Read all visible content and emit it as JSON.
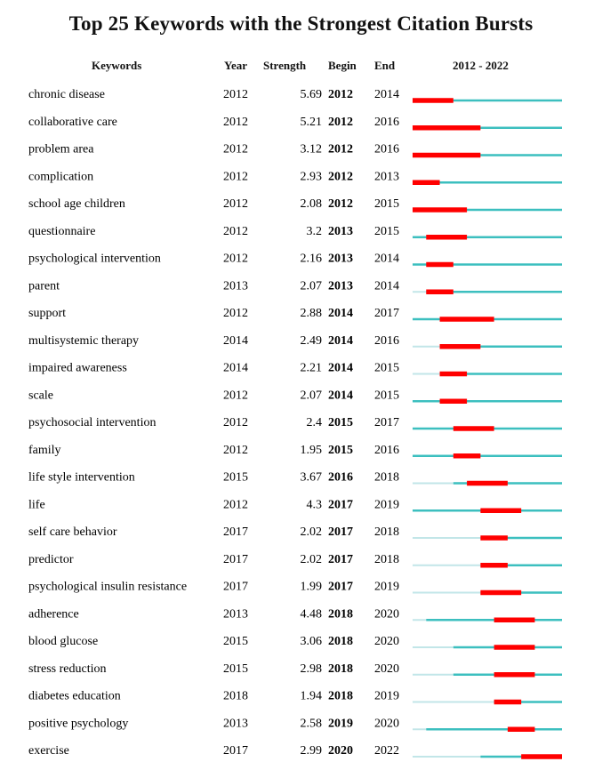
{
  "title": "Top 25 Keywords with the Strongest Citation Bursts",
  "headers": {
    "keywords": "Keywords",
    "year": "Year",
    "strength": "Strength",
    "begin": "Begin",
    "end": "End",
    "range": "2012 - 2022"
  },
  "colors": {
    "burst": "#ff0000",
    "active": "#3cbfbf",
    "inactive": "#c2e6e8"
  },
  "chart_data": {
    "type": "table",
    "timeline_start": 2012,
    "timeline_end": 2022,
    "rows": [
      {
        "keyword": "chronic disease",
        "year": "2012",
        "strength": "5.69",
        "begin": "2012",
        "end": "2014"
      },
      {
        "keyword": "collaborative care",
        "year": "2012",
        "strength": "5.21",
        "begin": "2012",
        "end": "2016"
      },
      {
        "keyword": "problem area",
        "year": "2012",
        "strength": "3.12",
        "begin": "2012",
        "end": "2016"
      },
      {
        "keyword": "complication",
        "year": "2012",
        "strength": "2.93",
        "begin": "2012",
        "end": "2013"
      },
      {
        "keyword": "school age children",
        "year": "2012",
        "strength": "2.08",
        "begin": "2012",
        "end": "2015"
      },
      {
        "keyword": "questionnaire",
        "year": "2012",
        "strength": "3.2",
        "begin": "2013",
        "end": "2015"
      },
      {
        "keyword": "psychological intervention",
        "year": "2012",
        "strength": "2.16",
        "begin": "2013",
        "end": "2014"
      },
      {
        "keyword": "parent",
        "year": "2013",
        "strength": "2.07",
        "begin": "2013",
        "end": "2014"
      },
      {
        "keyword": "support",
        "year": "2012",
        "strength": "2.88",
        "begin": "2014",
        "end": "2017"
      },
      {
        "keyword": "multisystemic therapy",
        "year": "2014",
        "strength": "2.49",
        "begin": "2014",
        "end": "2016"
      },
      {
        "keyword": "impaired awareness",
        "year": "2014",
        "strength": "2.21",
        "begin": "2014",
        "end": "2015"
      },
      {
        "keyword": "scale",
        "year": "2012",
        "strength": "2.07",
        "begin": "2014",
        "end": "2015"
      },
      {
        "keyword": "psychosocial intervention",
        "year": "2012",
        "strength": "2.4",
        "begin": "2015",
        "end": "2017"
      },
      {
        "keyword": "family",
        "year": "2012",
        "strength": "1.95",
        "begin": "2015",
        "end": "2016"
      },
      {
        "keyword": "life style intervention",
        "year": "2015",
        "strength": "3.67",
        "begin": "2016",
        "end": "2018"
      },
      {
        "keyword": "life",
        "year": "2012",
        "strength": "4.3",
        "begin": "2017",
        "end": "2019"
      },
      {
        "keyword": "self care behavior",
        "year": "2017",
        "strength": "2.02",
        "begin": "2017",
        "end": "2018"
      },
      {
        "keyword": "predictor",
        "year": "2017",
        "strength": "2.02",
        "begin": "2017",
        "end": "2018"
      },
      {
        "keyword": "psychological insulin resistance",
        "year": "2017",
        "strength": "1.99",
        "begin": "2017",
        "end": "2019"
      },
      {
        "keyword": "adherence",
        "year": "2013",
        "strength": "4.48",
        "begin": "2018",
        "end": "2020"
      },
      {
        "keyword": "blood glucose",
        "year": "2015",
        "strength": "3.06",
        "begin": "2018",
        "end": "2020"
      },
      {
        "keyword": "stress reduction",
        "year": "2015",
        "strength": "2.98",
        "begin": "2018",
        "end": "2020"
      },
      {
        "keyword": "diabetes education",
        "year": "2018",
        "strength": "1.94",
        "begin": "2018",
        "end": "2019"
      },
      {
        "keyword": "positive psychology",
        "year": "2013",
        "strength": "2.58",
        "begin": "2019",
        "end": "2020"
      },
      {
        "keyword": "exercise",
        "year": "2017",
        "strength": "2.99",
        "begin": "2020",
        "end": "2022"
      }
    ]
  }
}
